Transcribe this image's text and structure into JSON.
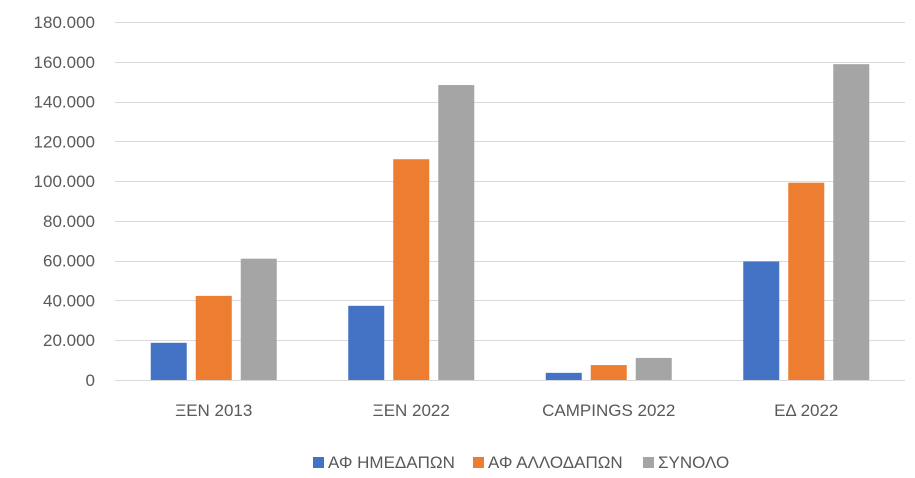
{
  "chart_data": {
    "type": "bar",
    "categories": [
      "ΞΕΝ 2013",
      "ΞΕΝ 2022",
      "CAMPINGS 2022",
      "ΕΔ 2022"
    ],
    "series": [
      {
        "name": "ΑΦ ΗΜΕΔΑΠΩΝ",
        "color": "#4472C4",
        "values": [
          18700,
          37300,
          3600,
          59600
        ]
      },
      {
        "name": "ΑΦ ΑΛΛΟΔΑΠΩΝ",
        "color": "#ED7D31",
        "values": [
          42300,
          111000,
          7500,
          99200
        ]
      },
      {
        "name": "ΣΥΝΟΛΟ",
        "color": "#A5A5A5",
        "values": [
          61000,
          148300,
          11100,
          158800
        ]
      }
    ],
    "ylim": [
      0,
      180000
    ],
    "yticks": [
      0,
      20000,
      40000,
      60000,
      80000,
      100000,
      120000,
      140000,
      160000,
      180000
    ],
    "ytick_labels": [
      "0",
      "20.000",
      "40.000",
      "60.000",
      "80.000",
      "100.000",
      "120.000",
      "140.000",
      "160.000",
      "180.000"
    ],
    "grid": true,
    "legend_position": "bottom"
  }
}
